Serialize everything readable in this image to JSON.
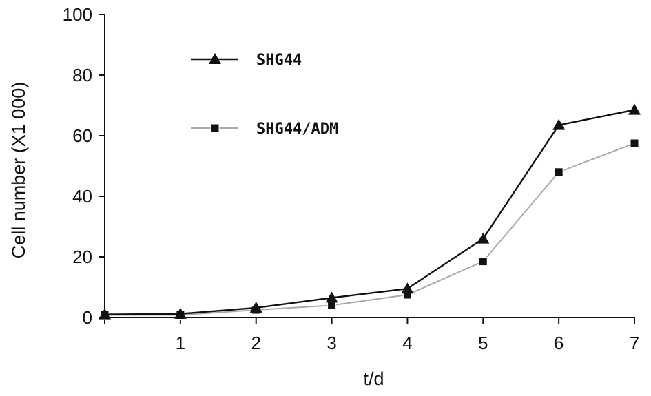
{
  "chart_data": {
    "type": "line",
    "x": [
      0,
      1,
      2,
      3,
      4,
      5,
      6,
      7
    ],
    "x_tick_labels": [
      "1",
      "2",
      "3",
      "4",
      "5",
      "6",
      "7"
    ],
    "x_ticks": [
      1,
      2,
      3,
      4,
      5,
      6,
      7
    ],
    "y_ticks": [
      0,
      20,
      40,
      60,
      80,
      100
    ],
    "y_tick_labels": [
      "0",
      "20",
      "40",
      "60",
      "80",
      "100"
    ],
    "xlim": [
      0,
      7
    ],
    "ylim": [
      0,
      100
    ],
    "xlabel": "t/d",
    "ylabel": "Cell number (X1 000)",
    "title": "",
    "grid": false,
    "legend_position": "top-left",
    "series": [
      {
        "name": "SHG44",
        "marker": "triangle",
        "color": "#111111",
        "values": [
          1,
          1.2,
          3.2,
          6.5,
          9.5,
          26,
          63.5,
          68.5
        ]
      },
      {
        "name": "SHG44/ADM",
        "marker": "square",
        "color": "#aaaaaa",
        "marker_color": "#111111",
        "values": [
          0.8,
          0.8,
          2.5,
          4,
          7.5,
          18.5,
          48,
          57.5
        ]
      }
    ]
  }
}
